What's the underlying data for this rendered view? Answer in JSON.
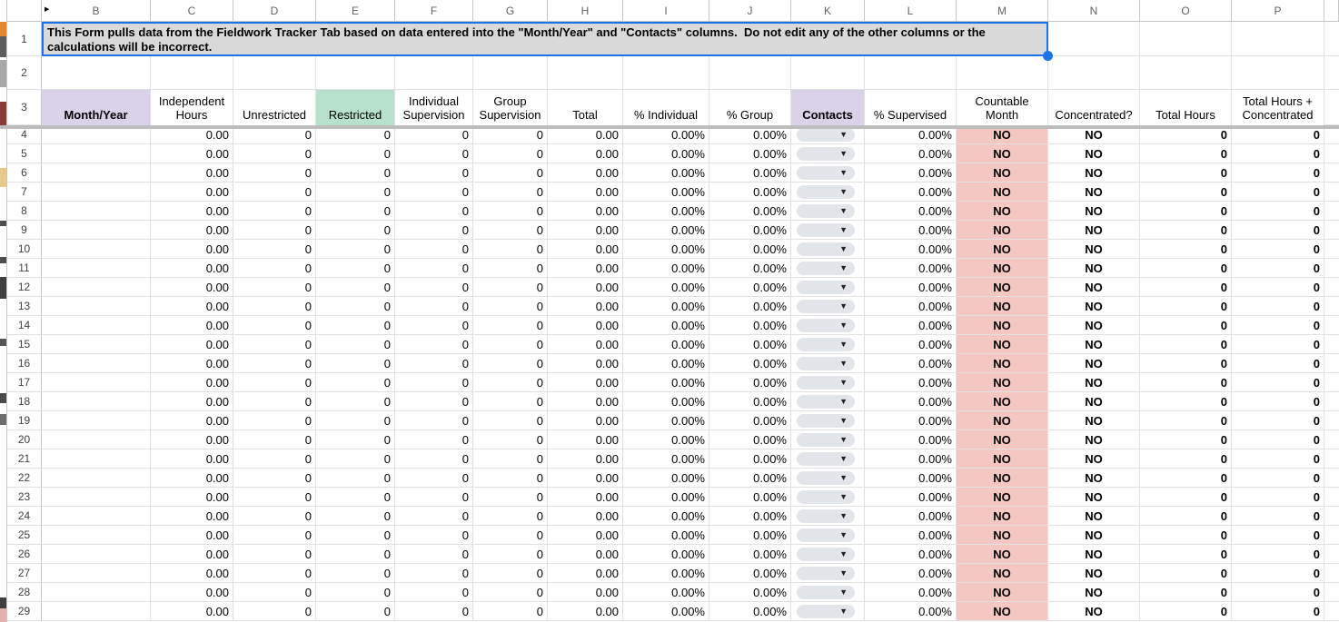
{
  "banner": {
    "text": "This Form pulls data from the Fieldwork Tracker Tab based on data entered into the \"Month/Year\" and \"Contacts\" columns.  Do not edit any of the other columns or the calculations will be incorrect."
  },
  "hidden_column_indicator": "▶",
  "dropdown_arrow": "▼",
  "colors": {
    "selection_blue": "#1a73e8",
    "banner_grey": "#d9d9d9",
    "lavender_header": "#d9d2e9",
    "green_header": "#b7e1cd",
    "pink_cell": "#f4c7c3",
    "dropdown_pill": "#e2e5e9",
    "frozen_separator": "#bdbdbd"
  },
  "columns": [
    {
      "letter": "B",
      "label": "Month/Year",
      "header_style": "lavender",
      "header_bold": true
    },
    {
      "letter": "C",
      "label": "Independent Hours"
    },
    {
      "letter": "D",
      "label": "Unrestricted"
    },
    {
      "letter": "E",
      "label": "Restricted",
      "header_style": "green"
    },
    {
      "letter": "F",
      "label": "Individual Supervision"
    },
    {
      "letter": "G",
      "label": "Group Supervision"
    },
    {
      "letter": "H",
      "label": "Total"
    },
    {
      "letter": "I",
      "label": "% Individual"
    },
    {
      "letter": "J",
      "label": "% Group"
    },
    {
      "letter": "K",
      "label": "Contacts",
      "header_style": "lavender",
      "header_bold": true,
      "type": "dropdown"
    },
    {
      "letter": "L",
      "label": "% Supervised"
    },
    {
      "letter": "M",
      "label": "Countable Month",
      "cell_bg": "pink",
      "cell_bold": true
    },
    {
      "letter": "N",
      "label": "Concentrated?",
      "cell_bold": true
    },
    {
      "letter": "O",
      "label": "Total Hours",
      "cell_bold": true
    },
    {
      "letter": "P",
      "label": "Total Hours + Concentrated",
      "cell_bold": true
    }
  ],
  "frozen_rows": [
    "1",
    "2",
    "3"
  ],
  "data_rows": [
    {
      "row": "4",
      "values": [
        "",
        "0.00",
        "0",
        "0",
        "0",
        "0",
        "0.00",
        "0.00%",
        "0.00%",
        "",
        "0.00%",
        "NO",
        "NO",
        "0",
        "0"
      ]
    },
    {
      "row": "5",
      "values": [
        "",
        "0.00",
        "0",
        "0",
        "0",
        "0",
        "0.00",
        "0.00%",
        "0.00%",
        "",
        "0.00%",
        "NO",
        "NO",
        "0",
        "0"
      ]
    },
    {
      "row": "6",
      "values": [
        "",
        "0.00",
        "0",
        "0",
        "0",
        "0",
        "0.00",
        "0.00%",
        "0.00%",
        "",
        "0.00%",
        "NO",
        "NO",
        "0",
        "0"
      ]
    },
    {
      "row": "7",
      "values": [
        "",
        "0.00",
        "0",
        "0",
        "0",
        "0",
        "0.00",
        "0.00%",
        "0.00%",
        "",
        "0.00%",
        "NO",
        "NO",
        "0",
        "0"
      ]
    },
    {
      "row": "8",
      "values": [
        "",
        "0.00",
        "0",
        "0",
        "0",
        "0",
        "0.00",
        "0.00%",
        "0.00%",
        "",
        "0.00%",
        "NO",
        "NO",
        "0",
        "0"
      ]
    },
    {
      "row": "9",
      "values": [
        "",
        "0.00",
        "0",
        "0",
        "0",
        "0",
        "0.00",
        "0.00%",
        "0.00%",
        "",
        "0.00%",
        "NO",
        "NO",
        "0",
        "0"
      ]
    },
    {
      "row": "10",
      "values": [
        "",
        "0.00",
        "0",
        "0",
        "0",
        "0",
        "0.00",
        "0.00%",
        "0.00%",
        "",
        "0.00%",
        "NO",
        "NO",
        "0",
        "0"
      ]
    },
    {
      "row": "11",
      "values": [
        "",
        "0.00",
        "0",
        "0",
        "0",
        "0",
        "0.00",
        "0.00%",
        "0.00%",
        "",
        "0.00%",
        "NO",
        "NO",
        "0",
        "0"
      ]
    },
    {
      "row": "12",
      "values": [
        "",
        "0.00",
        "0",
        "0",
        "0",
        "0",
        "0.00",
        "0.00%",
        "0.00%",
        "",
        "0.00%",
        "NO",
        "NO",
        "0",
        "0"
      ]
    },
    {
      "row": "13",
      "values": [
        "",
        "0.00",
        "0",
        "0",
        "0",
        "0",
        "0.00",
        "0.00%",
        "0.00%",
        "",
        "0.00%",
        "NO",
        "NO",
        "0",
        "0"
      ]
    },
    {
      "row": "14",
      "values": [
        "",
        "0.00",
        "0",
        "0",
        "0",
        "0",
        "0.00",
        "0.00%",
        "0.00%",
        "",
        "0.00%",
        "NO",
        "NO",
        "0",
        "0"
      ]
    },
    {
      "row": "15",
      "values": [
        "",
        "0.00",
        "0",
        "0",
        "0",
        "0",
        "0.00",
        "0.00%",
        "0.00%",
        "",
        "0.00%",
        "NO",
        "NO",
        "0",
        "0"
      ]
    },
    {
      "row": "16",
      "values": [
        "",
        "0.00",
        "0",
        "0",
        "0",
        "0",
        "0.00",
        "0.00%",
        "0.00%",
        "",
        "0.00%",
        "NO",
        "NO",
        "0",
        "0"
      ]
    },
    {
      "row": "17",
      "values": [
        "",
        "0.00",
        "0",
        "0",
        "0",
        "0",
        "0.00",
        "0.00%",
        "0.00%",
        "",
        "0.00%",
        "NO",
        "NO",
        "0",
        "0"
      ]
    },
    {
      "row": "18",
      "values": [
        "",
        "0.00",
        "0",
        "0",
        "0",
        "0",
        "0.00",
        "0.00%",
        "0.00%",
        "",
        "0.00%",
        "NO",
        "NO",
        "0",
        "0"
      ]
    },
    {
      "row": "19",
      "values": [
        "",
        "0.00",
        "0",
        "0",
        "0",
        "0",
        "0.00",
        "0.00%",
        "0.00%",
        "",
        "0.00%",
        "NO",
        "NO",
        "0",
        "0"
      ]
    },
    {
      "row": "20",
      "values": [
        "",
        "0.00",
        "0",
        "0",
        "0",
        "0",
        "0.00",
        "0.00%",
        "0.00%",
        "",
        "0.00%",
        "NO",
        "NO",
        "0",
        "0"
      ]
    },
    {
      "row": "21",
      "values": [
        "",
        "0.00",
        "0",
        "0",
        "0",
        "0",
        "0.00",
        "0.00%",
        "0.00%",
        "",
        "0.00%",
        "NO",
        "NO",
        "0",
        "0"
      ]
    },
    {
      "row": "22",
      "values": [
        "",
        "0.00",
        "0",
        "0",
        "0",
        "0",
        "0.00",
        "0.00%",
        "0.00%",
        "",
        "0.00%",
        "NO",
        "NO",
        "0",
        "0"
      ]
    },
    {
      "row": "23",
      "values": [
        "",
        "0.00",
        "0",
        "0",
        "0",
        "0",
        "0.00",
        "0.00%",
        "0.00%",
        "",
        "0.00%",
        "NO",
        "NO",
        "0",
        "0"
      ]
    },
    {
      "row": "24",
      "values": [
        "",
        "0.00",
        "0",
        "0",
        "0",
        "0",
        "0.00",
        "0.00%",
        "0.00%",
        "",
        "0.00%",
        "NO",
        "NO",
        "0",
        "0"
      ]
    },
    {
      "row": "25",
      "values": [
        "",
        "0.00",
        "0",
        "0",
        "0",
        "0",
        "0.00",
        "0.00%",
        "0.00%",
        "",
        "0.00%",
        "NO",
        "NO",
        "0",
        "0"
      ]
    },
    {
      "row": "26",
      "values": [
        "",
        "0.00",
        "0",
        "0",
        "0",
        "0",
        "0.00",
        "0.00%",
        "0.00%",
        "",
        "0.00%",
        "NO",
        "NO",
        "0",
        "0"
      ]
    },
    {
      "row": "27",
      "values": [
        "",
        "0.00",
        "0",
        "0",
        "0",
        "0",
        "0.00",
        "0.00%",
        "0.00%",
        "",
        "0.00%",
        "NO",
        "NO",
        "0",
        "0"
      ]
    },
    {
      "row": "28",
      "values": [
        "",
        "0.00",
        "0",
        "0",
        "0",
        "0",
        "0.00",
        "0.00%",
        "0.00%",
        "",
        "0.00%",
        "NO",
        "NO",
        "0",
        "0"
      ]
    },
    {
      "row": "29",
      "values": [
        "",
        "0.00",
        "0",
        "0",
        "0",
        "0",
        "0.00",
        "0.00%",
        "0.00%",
        "",
        "0.00%",
        "NO",
        "NO",
        "0",
        "0"
      ]
    }
  ]
}
